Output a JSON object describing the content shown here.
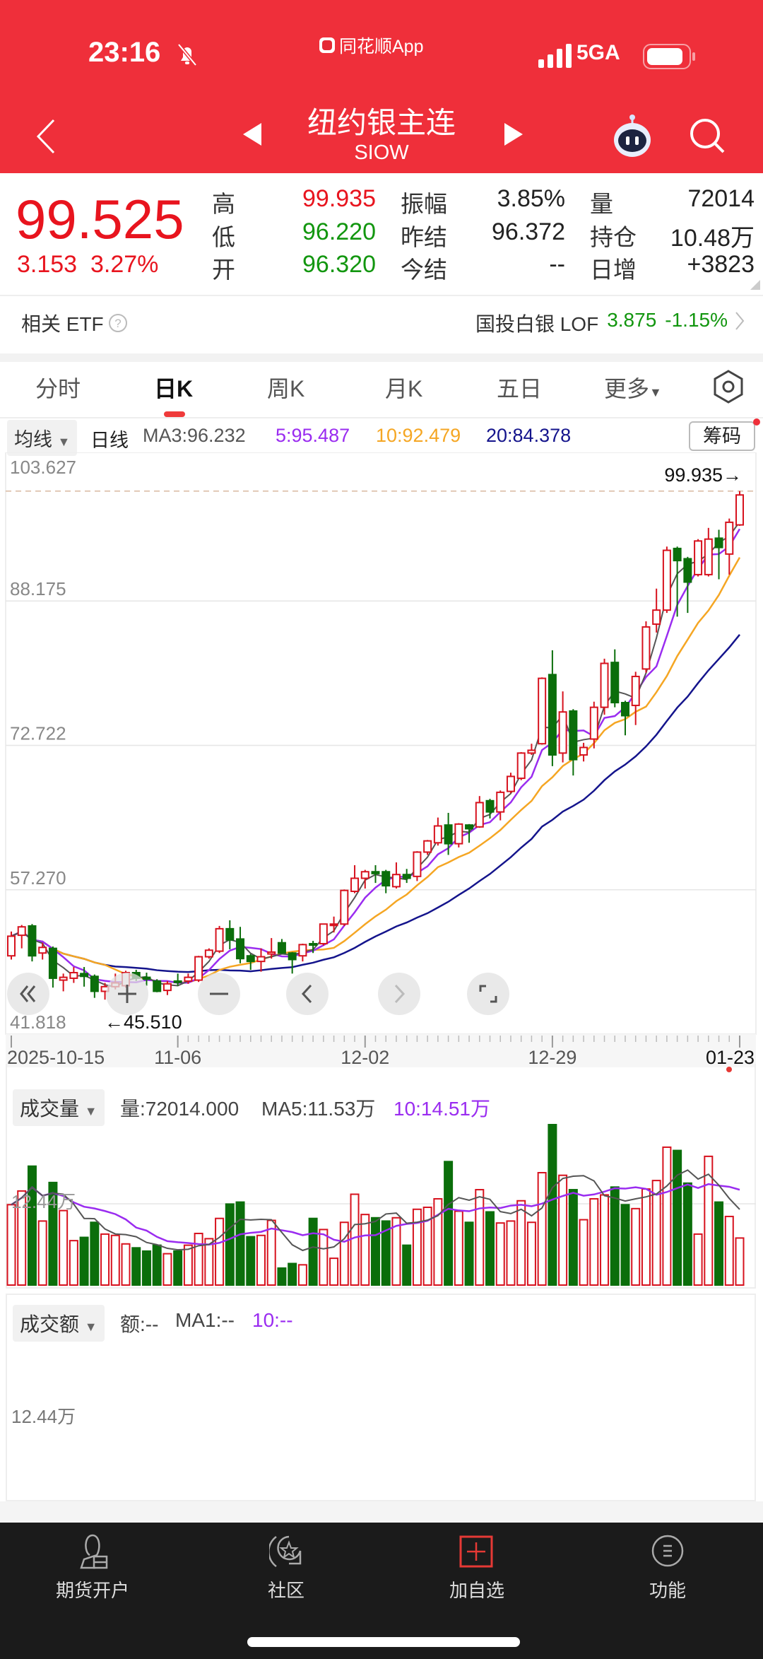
{
  "status_bar": {
    "time": "23:16",
    "app_name": "同花顺App",
    "network": "5GA"
  },
  "header": {
    "title": "纽约银主连",
    "code": "SIOW"
  },
  "quote": {
    "price": "99.525",
    "change": "3.153",
    "change_pct": "3.27%",
    "rows": [
      {
        "l1": "高",
        "v1": "99.935",
        "c1": "red",
        "l2": "振幅",
        "v2": "3.85%",
        "c2": "blk",
        "l3": "量",
        "v3": "72014"
      },
      {
        "l1": "低",
        "v1": "96.220",
        "c1": "grn",
        "l2": "昨结",
        "v2": "96.372",
        "c2": "blk",
        "l3": "持仓",
        "v3": "10.48万"
      },
      {
        "l1": "开",
        "v1": "96.320",
        "c1": "grn",
        "l2": "今结",
        "v2": "--",
        "c2": "blk",
        "l3": "日增",
        "v3": "+3823"
      }
    ]
  },
  "etf": {
    "label": "相关 ETF",
    "name": "国投白银 LOF",
    "price": "3.875",
    "change": "-1.15%"
  },
  "tabs": [
    {
      "label": "分时"
    },
    {
      "label": "日K",
      "active": true
    },
    {
      "label": "周K"
    },
    {
      "label": "月K"
    },
    {
      "label": "五日"
    },
    {
      "label": "更多"
    }
  ],
  "ma_legend": {
    "selector": "均线",
    "period": "日线",
    "ma3": "MA3:96.232",
    "ma5": "5:95.487",
    "ma10": "10:92.479",
    "ma20": "20:84.378",
    "chip_button": "筹码"
  },
  "colors": {
    "up": "#d7121e",
    "down": "#0b6e0b",
    "ma3": "#555555",
    "ma5": "#9a2cf0",
    "ma10": "#f5a623",
    "ma20": "#14148c",
    "header": "#ef2f3a"
  },
  "chart_data": {
    "type": "candlestick",
    "price_ticks": [
      "103.627",
      "88.175",
      "72.722",
      "57.270",
      "41.818"
    ],
    "ylim": [
      41.818,
      103.627
    ],
    "max_label": "99.935→",
    "min_label": "←45.510",
    "date_labels": [
      {
        "index": 0,
        "text": "2025-10-15"
      },
      {
        "index": 16,
        "text": "11-06"
      },
      {
        "index": 34,
        "text": "12-02"
      },
      {
        "index": 52,
        "text": "12-29"
      },
      {
        "index": 70,
        "text": "01-23"
      }
    ],
    "ohlc": [
      [
        50.2,
        52.8,
        49.8,
        52.3
      ],
      [
        52.4,
        53.5,
        51.0,
        53.3
      ],
      [
        53.4,
        53.6,
        49.6,
        50.2
      ],
      [
        50.5,
        51.6,
        49.8,
        51.1
      ],
      [
        51.0,
        51.2,
        46.8,
        47.8
      ],
      [
        47.6,
        48.3,
        46.4,
        47.9
      ],
      [
        47.8,
        49.0,
        47.3,
        48.4
      ],
      [
        48.3,
        49.0,
        46.9,
        48.0
      ],
      [
        48.0,
        48.2,
        45.7,
        46.4
      ],
      [
        46.4,
        47.3,
        45.51,
        46.9
      ],
      [
        46.9,
        48.3,
        46.6,
        47.3
      ],
      [
        47.0,
        48.6,
        46.8,
        48.4
      ],
      [
        48.4,
        48.7,
        47.5,
        47.8
      ],
      [
        47.9,
        48.4,
        47.0,
        47.7
      ],
      [
        47.5,
        47.7,
        46.3,
        46.4
      ],
      [
        46.5,
        47.5,
        46.0,
        47.2
      ],
      [
        47.5,
        48.3,
        47.0,
        47.4
      ],
      [
        47.5,
        48.3,
        47.2,
        47.9
      ],
      [
        47.6,
        50.2,
        47.4,
        50.1
      ],
      [
        50.1,
        51.0,
        49.9,
        50.8
      ],
      [
        50.7,
        53.4,
        50.5,
        53.1
      ],
      [
        53.1,
        54.0,
        50.9,
        51.9
      ],
      [
        52.0,
        53.3,
        49.4,
        49.9
      ],
      [
        50.2,
        50.4,
        48.7,
        49.6
      ],
      [
        49.6,
        51.0,
        48.5,
        50.1
      ],
      [
        50.4,
        52.1,
        49.9,
        50.6
      ],
      [
        51.6,
        52.0,
        50.4,
        50.5
      ],
      [
        50.5,
        50.6,
        48.3,
        49.8
      ],
      [
        50.2,
        51.5,
        49.6,
        51.4
      ],
      [
        51.5,
        51.8,
        50.5,
        51.4
      ],
      [
        51.5,
        53.6,
        51.3,
        53.6
      ],
      [
        53.5,
        54.4,
        52.7,
        53.6
      ],
      [
        53.6,
        57.3,
        53.4,
        57.2
      ],
      [
        57.1,
        59.9,
        56.9,
        58.5
      ],
      [
        58.5,
        59.4,
        57.4,
        59.2
      ],
      [
        59.2,
        59.9,
        58.0,
        59.0
      ],
      [
        59.2,
        59.4,
        56.9,
        57.7
      ],
      [
        57.6,
        60.2,
        57.4,
        58.9
      ],
      [
        58.9,
        59.5,
        58.0,
        58.5
      ],
      [
        58.7,
        61.4,
        58.2,
        61.3
      ],
      [
        61.3,
        62.6,
        61.0,
        62.5
      ],
      [
        62.3,
        65.0,
        62.0,
        64.1
      ],
      [
        64.2,
        65.5,
        61.0,
        62.2
      ],
      [
        62.2,
        64.4,
        61.8,
        64.3
      ],
      [
        64.2,
        64.3,
        62.3,
        63.8
      ],
      [
        64.0,
        67.3,
        63.9,
        66.6
      ],
      [
        66.8,
        67.0,
        64.9,
        65.6
      ],
      [
        65.6,
        67.9,
        64.7,
        67.7
      ],
      [
        67.8,
        69.8,
        67.6,
        69.4
      ],
      [
        69.2,
        72.0,
        69.0,
        71.9
      ],
      [
        71.9,
        72.9,
        71.7,
        72.2
      ],
      [
        72.9,
        80.0,
        72.8,
        79.9
      ],
      [
        80.3,
        82.9,
        70.5,
        71.7
      ],
      [
        71.9,
        78.5,
        70.9,
        76.3
      ],
      [
        76.4,
        76.6,
        69.5,
        71.2
      ],
      [
        71.7,
        73.0,
        71.0,
        72.5
      ],
      [
        73.4,
        77.4,
        72.4,
        76.8
      ],
      [
        76.8,
        82.0,
        76.0,
        81.5
      ],
      [
        81.6,
        83.0,
        76.8,
        77.3
      ],
      [
        77.3,
        77.5,
        73.8,
        75.9
      ],
      [
        77.0,
        80.6,
        74.9,
        80.1
      ],
      [
        80.9,
        86.0,
        80.5,
        85.4
      ],
      [
        85.7,
        89.5,
        84.8,
        87.2
      ],
      [
        87.2,
        94.0,
        86.9,
        93.6
      ],
      [
        93.8,
        94.0,
        86.5,
        92.5
      ],
      [
        92.7,
        92.9,
        86.9,
        90.2
      ],
      [
        91.0,
        94.8,
        90.8,
        94.6
      ],
      [
        91.0,
        96.0,
        90.8,
        94.8
      ],
      [
        94.9,
        95.8,
        90.5,
        93.9
      ],
      [
        93.2,
        97.0,
        91.0,
        96.6
      ],
      [
        96.32,
        99.935,
        96.22,
        99.525
      ]
    ],
    "volume_wan": [
      12.3,
      14.4,
      18.2,
      9.8,
      15.7,
      11.4,
      6.8,
      7.3,
      9.6,
      7.8,
      7.6,
      6.3,
      5.7,
      5.2,
      6.1,
      4.8,
      5.2,
      6.1,
      7.9,
      7.1,
      10.2,
      12.4,
      12.7,
      7.4,
      7.6,
      9.9,
      2.6,
      3.3,
      3.1,
      10.2,
      8.5,
      4.1,
      9.6,
      13.9,
      10.8,
      10.3,
      9.8,
      10.3,
      6.1,
      11.6,
      11.9,
      13.2,
      18.9,
      11.3,
      9.6,
      14.6,
      11.2,
      9.5,
      9.8,
      12.9,
      9.6,
      17.2,
      25.1,
      16.8,
      14.6,
      10.0,
      13.2,
      13.8,
      15.0,
      12.3,
      11.7,
      14.7,
      16.0,
      21.1,
      20.6,
      15.6,
      7.8,
      19.7,
      12.7,
      10.5,
      7.2014
    ]
  },
  "volume_panel": {
    "selector": "成交量",
    "vol": "量:72014.000",
    "ma5": "MA5:11.53万",
    "ma10": "10:14.51万",
    "tick": "12.44万"
  },
  "amount_panel": {
    "selector": "成交额",
    "amt": "额:--",
    "ma1": "MA1:--",
    "ma10": "10:--",
    "tick": "12.44万"
  },
  "bottom_nav": [
    {
      "label": "期货开户"
    },
    {
      "label": "社区"
    },
    {
      "label": "加自选"
    },
    {
      "label": "功能"
    }
  ]
}
